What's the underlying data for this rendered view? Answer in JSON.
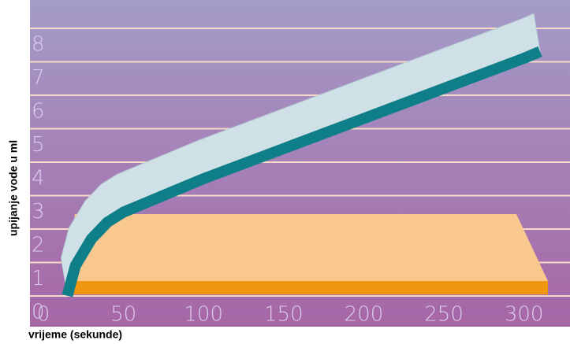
{
  "chart_data": {
    "type": "line",
    "x_label": "vrijeme  (sekunde)",
    "y_label": "upijanje  vode u ml",
    "x": [
      15,
      20,
      30,
      40,
      50,
      75,
      100,
      150,
      200,
      250,
      300,
      310
    ],
    "series": [
      {
        "name": "upijanje vode",
        "color": "#0e7f88",
        "values": [
          0.5,
          1.4,
          2.2,
          2.7,
          3.0,
          3.5,
          4.0,
          4.9,
          5.8,
          6.7,
          7.6,
          7.8
        ]
      }
    ],
    "xlim": [
      0,
      310
    ],
    "xticks": [
      0,
      50,
      100,
      150,
      200,
      250,
      300
    ],
    "ylim": [
      0,
      8.8
    ],
    "yticks": [
      0,
      1,
      2,
      3,
      4,
      5,
      6,
      7,
      8
    ],
    "grid": true
  }
}
